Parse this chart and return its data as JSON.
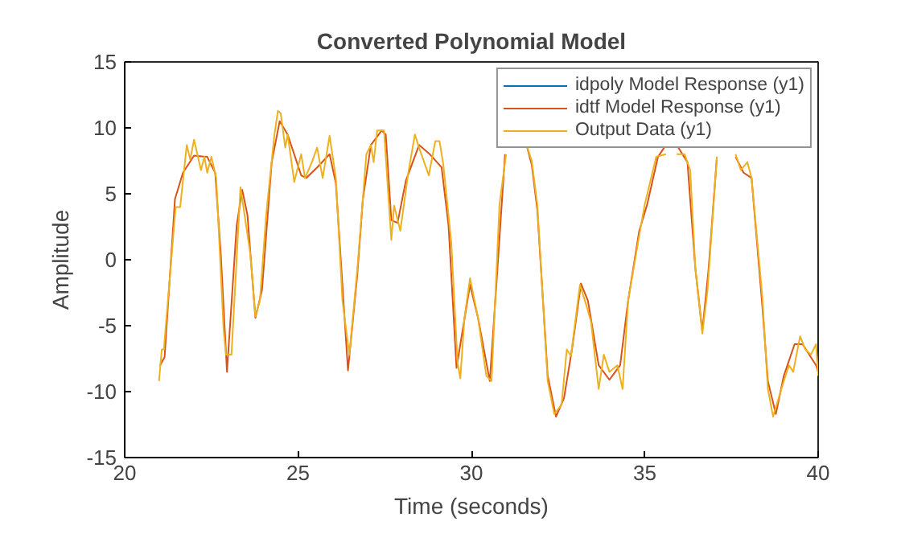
{
  "chart_data": {
    "type": "line",
    "title": "Converted Polynomial Model",
    "xlabel": "Time (seconds)",
    "ylabel": "Amplitude",
    "xlim": [
      20,
      40
    ],
    "ylim": [
      -15,
      15
    ],
    "xticks": [
      20,
      25,
      30,
      35,
      40
    ],
    "yticks": [
      -15,
      -10,
      -5,
      0,
      5,
      10,
      15
    ],
    "grid": false,
    "legend": "top right",
    "line_style": "solid",
    "marker": "none",
    "series": [
      {
        "name": "idpoly Model Response (y1)",
        "color": "#0072bd"
      },
      {
        "name": "idtf Model Response (y1)",
        "color": "#d95319",
        "x": [
          21.02,
          21.15,
          21.45,
          21.68,
          22.0,
          22.38,
          22.61,
          22.77,
          22.95,
          23.23,
          23.39,
          23.54,
          23.77,
          23.96,
          24.24,
          24.47,
          24.7,
          25.09,
          25.24,
          25.55,
          25.91,
          26.09,
          26.25,
          26.44,
          26.71,
          26.87,
          27.1,
          27.41,
          27.53,
          27.69,
          27.87,
          28.11,
          28.49,
          28.8,
          29.14,
          29.34,
          29.57,
          29.96,
          30.19,
          30.53,
          30.73,
          30.97,
          31.3,
          31.59,
          31.74,
          31.9,
          32.2,
          32.44,
          32.67,
          32.9,
          33.16,
          33.36,
          33.67,
          33.98,
          34.29,
          34.52,
          34.84,
          35.07,
          35.38,
          35.61,
          35.75,
          35.92,
          36.23,
          36.46,
          36.66,
          36.84,
          37.08,
          37.35,
          37.62,
          37.85,
          38.08,
          38.39,
          38.55,
          38.78,
          39.01,
          39.32,
          39.55,
          39.94,
          40.0
        ],
        "values": [
          -8.0,
          -7.4,
          4.6,
          6.6,
          7.9,
          7.8,
          6.6,
          0.5,
          -8.5,
          2.6,
          5.3,
          3.4,
          -4.4,
          -2.3,
          7.4,
          10.5,
          9.5,
          6.4,
          6.2,
          7.0,
          8.0,
          5.8,
          -0.7,
          -8.4,
          -1.1,
          4.6,
          8.7,
          9.8,
          9.5,
          3.0,
          2.8,
          6.0,
          8.7,
          8.0,
          7.0,
          2.6,
          -8.2,
          -1.9,
          -4.4,
          -9.2,
          -1.5,
          8.0,
          null,
          8.7,
          7.2,
          3.8,
          -8.8,
          -11.9,
          -10.5,
          -6.8,
          -1.8,
          -3.1,
          -8.0,
          -9.1,
          -8.0,
          -3.1,
          2.2,
          4.2,
          7.8,
          8.7,
          null,
          8.7,
          7.4,
          -0.7,
          -5.4,
          -0.7,
          7.8,
          null,
          7.8,
          6.6,
          6.2,
          -3.5,
          -9.2,
          -11.7,
          -8.8,
          -6.4,
          -6.4,
          -8.0,
          -8.5
        ]
      },
      {
        "name": "Output Data (y1)",
        "color": "#edb120",
        "x": [
          20.99,
          21.07,
          21.13,
          21.47,
          21.6,
          21.79,
          21.89,
          22.0,
          22.2,
          22.3,
          22.38,
          22.5,
          22.64,
          22.85,
          22.92,
          23.08,
          23.34,
          23.62,
          23.77,
          23.9,
          24.08,
          24.32,
          24.42,
          24.5,
          24.63,
          24.7,
          24.89,
          25.09,
          25.2,
          25.4,
          25.55,
          25.71,
          25.91,
          26.09,
          26.28,
          26.48,
          26.71,
          26.97,
          27.1,
          27.18,
          27.28,
          27.48,
          27.69,
          27.77,
          27.95,
          28.18,
          28.37,
          28.49,
          28.77,
          28.96,
          29.08,
          29.19,
          29.42,
          29.6,
          29.68,
          29.8,
          29.96,
          30.19,
          30.43,
          30.58,
          30.81,
          31.0,
          31.3,
          31.59,
          31.74,
          31.9,
          32.2,
          32.39,
          32.6,
          32.75,
          32.87,
          33.13,
          33.32,
          33.45,
          33.67,
          33.82,
          33.98,
          34.21,
          34.36,
          34.52,
          34.89,
          35.0,
          35.33,
          35.61,
          35.75,
          35.92,
          36.15,
          36.31,
          36.46,
          36.66,
          36.81,
          37.08,
          37.35,
          37.62,
          37.77,
          37.96,
          38.08,
          38.39,
          38.55,
          38.7,
          38.86,
          39.01,
          39.16,
          39.28,
          39.48,
          39.63,
          39.79,
          39.94,
          40.0
        ],
        "values": [
          -9.2,
          -6.8,
          -6.8,
          4.0,
          4.0,
          8.7,
          7.6,
          9.1,
          6.8,
          7.8,
          6.6,
          7.8,
          6.2,
          -5.2,
          -7.2,
          -7.2,
          5.5,
          0.5,
          -4.3,
          -3.1,
          3.4,
          9.5,
          11.3,
          11.1,
          8.5,
          9.5,
          5.9,
          8.0,
          6.2,
          7.4,
          8.5,
          6.2,
          9.4,
          6.2,
          -3.1,
          -7.2,
          -0.7,
          8.0,
          8.7,
          7.4,
          9.8,
          9.8,
          1.5,
          4.1,
          2.2,
          6.6,
          9.5,
          8.5,
          6.4,
          9.0,
          9.0,
          7.2,
          1.3,
          -7.8,
          -9.0,
          -4.4,
          -1.4,
          -4.4,
          -8.8,
          -9.2,
          4.2,
          8.0,
          null,
          8.7,
          7.5,
          4.2,
          -9.2,
          -11.7,
          -11.0,
          -6.8,
          -7.3,
          -1.9,
          -3.5,
          -4.7,
          -9.8,
          -7.2,
          -8.5,
          -8.0,
          -9.8,
          -3.1,
          2.6,
          4.2,
          7.8,
          8.0,
          null,
          8.0,
          8.0,
          6.8,
          -0.7,
          -5.6,
          -2.3,
          7.8,
          null,
          8.0,
          6.8,
          7.4,
          6.2,
          -2.8,
          -9.8,
          -11.9,
          -10.5,
          -9.2,
          -8.0,
          -8.5,
          -5.8,
          -6.8,
          -7.2,
          -6.4,
          -8.8
        ]
      }
    ]
  }
}
